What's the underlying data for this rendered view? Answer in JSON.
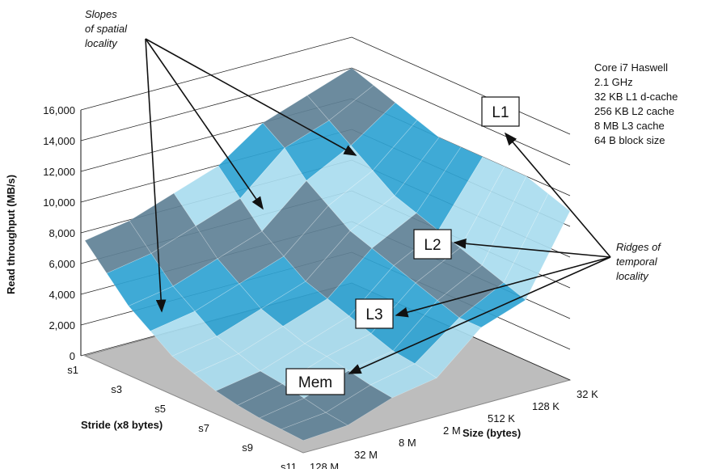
{
  "chart_data": {
    "type": "surface",
    "y_label": "Read throughput (MB/s)",
    "stride_label": "Stride (x8 bytes)",
    "size_label": "Size (bytes)",
    "strides": [
      "s1",
      null,
      "s3",
      null,
      "s5",
      null,
      "s7",
      null,
      "s9",
      null,
      "s11"
    ],
    "sizes": [
      "128 M",
      "32 M",
      "8 M",
      "2 M",
      "512 K",
      "128 K",
      "32 K"
    ],
    "values": [
      [
        7500,
        8000,
        9000,
        10000,
        12000,
        13000,
        14000
      ],
      [
        6000,
        6500,
        7500,
        8500,
        11000,
        12000,
        13500
      ],
      [
        4500,
        5000,
        6000,
        7000,
        9500,
        11000,
        13000
      ],
      [
        3500,
        4000,
        5000,
        6000,
        8500,
        10000,
        12500
      ],
      [
        2500,
        3000,
        4000,
        5000,
        7500,
        9000,
        12000
      ],
      [
        2000,
        2500,
        3500,
        4500,
        7000,
        8500,
        12000
      ],
      [
        1500,
        2000,
        3000,
        4000,
        6500,
        8000,
        12000
      ],
      [
        1200,
        1800,
        2800,
        3500,
        6000,
        7500,
        12000
      ],
      [
        1000,
        1500,
        2500,
        3000,
        5500,
        7000,
        12000
      ],
      [
        900,
        1200,
        2200,
        2800,
        5000,
        6500,
        11500
      ],
      [
        800,
        1000,
        2000,
        2500,
        5000,
        6000,
        11000
      ]
    ],
    "colors": [
      "#5f8196",
      "#a9dcef",
      "#2fa3d2"
    ],
    "floor_color": "#bdbdbd",
    "ylim": [
      0,
      16000
    ],
    "yticks": [
      0,
      {
        "value": 2000,
        "label": "2,000"
      },
      {
        "value": 4000,
        "label": "4,000"
      },
      {
        "value": 6000,
        "label": "6,000"
      },
      {
        "value": 8000,
        "label": "8,000"
      },
      {
        "value": 10000,
        "label": "10,000"
      },
      {
        "value": 12000,
        "label": "12,000"
      },
      {
        "value": 14000,
        "label": "14,000"
      },
      {
        "value": 16000,
        "label": "16,000"
      }
    ],
    "grid": true,
    "annotations": {
      "slopes": [
        "Slopes",
        "of spatial",
        "locality"
      ],
      "machine": [
        "Core i7 Haswell",
        "2.1 GHz",
        "32 KB L1 d-cache",
        "256 KB L2 cache",
        "8 MB L3 cache",
        "64 B block size"
      ],
      "ridges": [
        "Ridges of",
        "temporal",
        "locality"
      ],
      "l1": "L1",
      "l2": "L2",
      "l3": "L3",
      "mem": "Mem"
    }
  }
}
